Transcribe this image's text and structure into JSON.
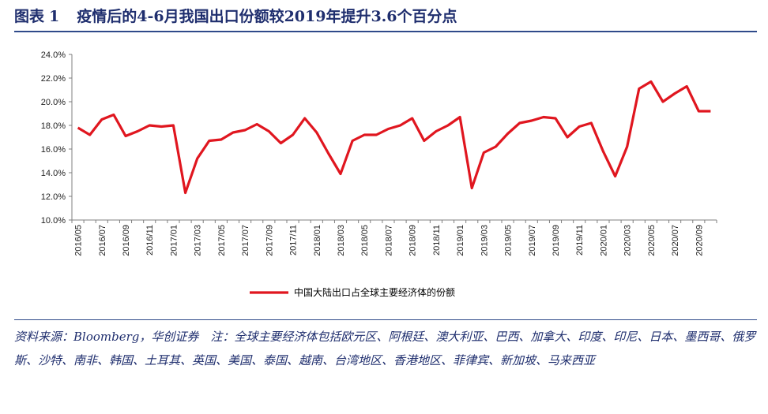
{
  "header": {
    "figure_label": "图表",
    "figure_number": "1",
    "title": "疫情后的4-6月我国出口份额较2019年提升3.6个百分点"
  },
  "colors": {
    "line": "#e0161f",
    "accent": "#2f4a8a",
    "text": "#1f2e6e"
  },
  "chart_data": {
    "type": "line",
    "title": "",
    "xlabel": "",
    "ylabel": "",
    "ylim": [
      10.0,
      24.0
    ],
    "y_ticks": [
      "10.0%",
      "12.0%",
      "14.0%",
      "16.0%",
      "18.0%",
      "20.0%",
      "22.0%",
      "24.0%"
    ],
    "x": [
      "2016/05",
      "2016/06",
      "2016/07",
      "2016/08",
      "2016/09",
      "2016/10",
      "2016/11",
      "2016/12",
      "2017/01",
      "2017/02",
      "2017/03",
      "2017/04",
      "2017/05",
      "2017/06",
      "2017/07",
      "2017/08",
      "2017/09",
      "2017/10",
      "2017/11",
      "2017/12",
      "2018/01",
      "2018/02",
      "2018/03",
      "2018/04",
      "2018/05",
      "2018/06",
      "2018/07",
      "2018/08",
      "2018/09",
      "2018/10",
      "2018/11",
      "2018/12",
      "2019/01",
      "2019/02",
      "2019/03",
      "2019/04",
      "2019/05",
      "2019/06",
      "2019/07",
      "2019/08",
      "2019/09",
      "2019/10",
      "2019/11",
      "2019/12",
      "2020/01",
      "2020/02",
      "2020/03",
      "2020/04",
      "2020/05",
      "2020/06",
      "2020/07",
      "2020/08",
      "2020/09",
      "2020/10"
    ],
    "x_tick_labels": [
      "2016/05",
      "2016/07",
      "2016/09",
      "2016/11",
      "2017/01",
      "2017/03",
      "2017/05",
      "2017/07",
      "2017/09",
      "2017/11",
      "2018/01",
      "2018/03",
      "2018/05",
      "2018/07",
      "2018/09",
      "2018/11",
      "2019/01",
      "2019/03",
      "2019/05",
      "2019/07",
      "2019/09",
      "2019/11",
      "2020/01",
      "2020/03",
      "2020/05",
      "2020/07",
      "2020/09"
    ],
    "series": [
      {
        "name": "中国大陆出口占全球主要经济体的份额",
        "color": "#e0161f",
        "values": [
          17.8,
          17.2,
          18.5,
          18.9,
          17.1,
          17.5,
          18.0,
          17.9,
          18.0,
          12.3,
          15.2,
          16.7,
          16.8,
          17.4,
          17.6,
          18.1,
          17.5,
          16.5,
          17.2,
          18.6,
          17.4,
          15.6,
          13.9,
          16.7,
          17.2,
          17.2,
          17.7,
          18.0,
          18.6,
          16.7,
          17.5,
          18.0,
          18.7,
          12.7,
          15.7,
          16.2,
          17.3,
          18.2,
          18.4,
          18.7,
          18.6,
          17.0,
          17.9,
          18.2,
          15.8,
          13.7,
          16.2,
          21.1,
          21.7,
          20.0,
          20.7,
          21.3,
          19.2,
          19.2
        ]
      }
    ],
    "grid": false,
    "legend_position": "bottom-center"
  },
  "source": {
    "text": "资料来源：Bloomberg，华创证券　注：全球主要经济体包括欧元区、阿根廷、澳大利亚、巴西、加拿大、印度、印尼、日本、墨西哥、俄罗斯、沙特、南非、韩国、土耳其、英国、美国、泰国、越南、台湾地区、香港地区、菲律宾、新加坡、马来西亚"
  }
}
